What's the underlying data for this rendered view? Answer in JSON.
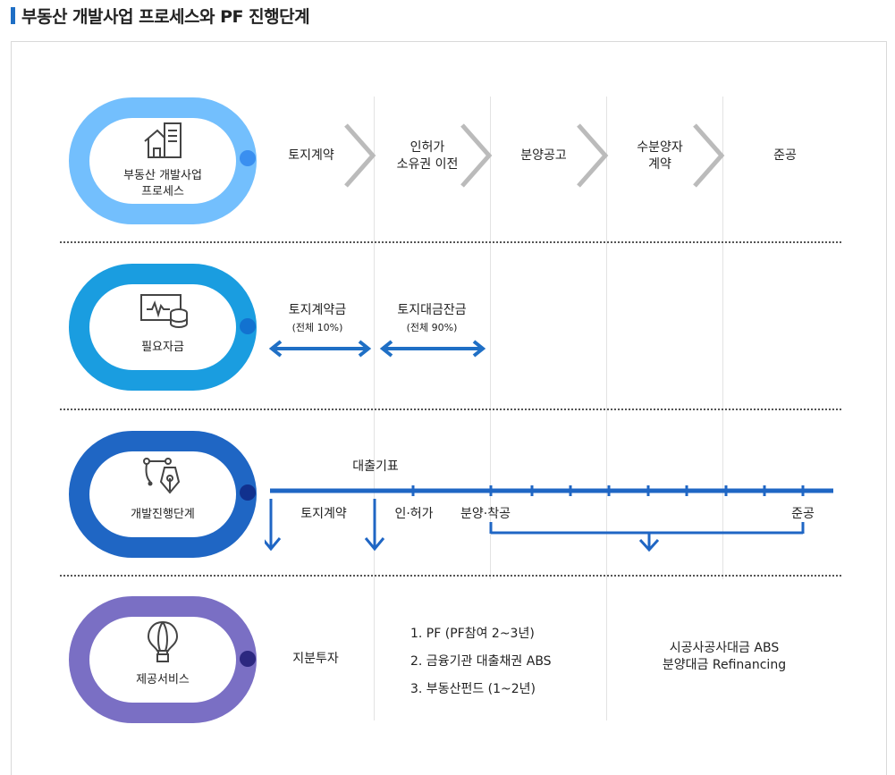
{
  "title": "부동산 개발사업 프로세스와 PF 진행단계",
  "colors": {
    "row1": "#73bffd",
    "row2": "#1a9de0",
    "row3": "#1f66c4",
    "row4": "#7a6fc4",
    "accent": "#1f6fc5"
  },
  "rows": [
    {
      "label_lines": [
        "부동산 개발사업",
        "프로세스"
      ],
      "icon": "building-document-icon"
    },
    {
      "label_lines": [
        "필요자금"
      ],
      "icon": "money-monitor-coins-icon"
    },
    {
      "label_lines": [
        "개발진행단계"
      ],
      "icon": "pen-tool-icon"
    },
    {
      "label_lines": [
        "제공서비스"
      ],
      "icon": "hot-air-balloon-icon"
    }
  ],
  "process_steps": [
    {
      "lines": [
        "토지계약"
      ]
    },
    {
      "lines": [
        "인허가",
        "소유권 이전"
      ]
    },
    {
      "lines": [
        "분양공고"
      ]
    },
    {
      "lines": [
        "수분양자",
        "계약"
      ]
    },
    {
      "lines": [
        "준공"
      ]
    }
  ],
  "funding": [
    {
      "label": "토지계약금",
      "sub": "(전체 10%)"
    },
    {
      "label": "토지대금잔금",
      "sub": "(전체 90%)"
    }
  ],
  "timeline": {
    "header": "대출기표",
    "labels": [
      "토지계약",
      "인·허가",
      "분양·착공",
      "준공"
    ]
  },
  "services": {
    "equity": "지분투자",
    "pf_items": [
      "1. PF (PF참여 2~3년)",
      "2. 금융기관 대출채권 ABS",
      "3. 부동산펀드 (1~2년)"
    ],
    "late_lines": [
      "시공사공사대금 ABS",
      "분양대금 Refinancing"
    ]
  }
}
